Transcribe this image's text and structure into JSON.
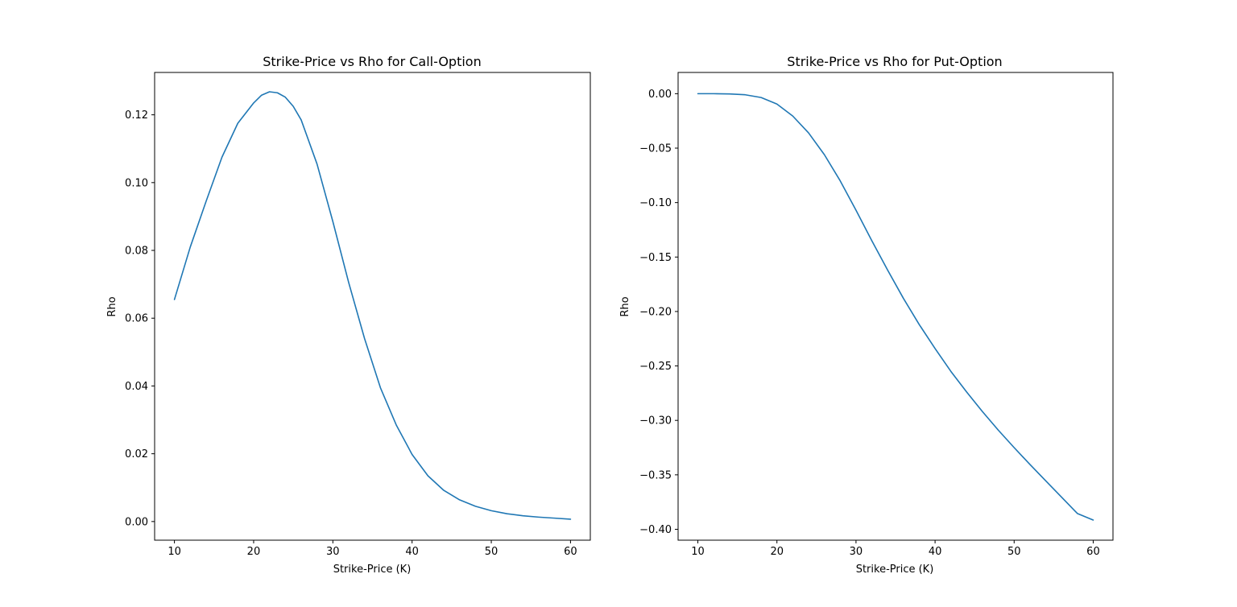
{
  "chart_data": [
    {
      "type": "line",
      "title": "Strike-Price vs Rho for Call-Option",
      "xlabel": "Strike-Price (K)",
      "ylabel": "Rho",
      "xlim": [
        7.5,
        62.5
      ],
      "ylim": [
        -0.0055,
        0.1325
      ],
      "xticks": [
        10,
        20,
        30,
        40,
        50,
        60
      ],
      "xtick_labels": [
        "10",
        "20",
        "30",
        "40",
        "50",
        "60"
      ],
      "yticks": [
        0.0,
        0.02,
        0.04,
        0.06,
        0.08,
        0.1,
        0.12
      ],
      "ytick_labels": [
        "0.00",
        "0.02",
        "0.04",
        "0.06",
        "0.08",
        "0.10",
        "0.12"
      ],
      "grid": false,
      "series": [
        {
          "color": "#1f77b4",
          "x": [
            10,
            12,
            14,
            16,
            18,
            20,
            21,
            22,
            23,
            24,
            25,
            26,
            28,
            30,
            32,
            34,
            36,
            38,
            40,
            42,
            44,
            46,
            48,
            50,
            52,
            54,
            56,
            58,
            60
          ],
          "y": [
            0.0655,
            0.081,
            0.0945,
            0.1075,
            0.1175,
            0.1235,
            0.1258,
            0.1268,
            0.1265,
            0.1252,
            0.1225,
            0.1185,
            0.1055,
            0.0885,
            0.0705,
            0.054,
            0.0395,
            0.0285,
            0.0198,
            0.0135,
            0.0092,
            0.0064,
            0.0045,
            0.0032,
            0.0023,
            0.0017,
            0.0013,
            0.001,
            0.0007
          ]
        }
      ]
    },
    {
      "type": "line",
      "title": "Strike-Price vs Rho for Put-Option",
      "xlabel": "Strike-Price (K)",
      "ylabel": "Rho",
      "xlim": [
        7.5,
        62.5
      ],
      "ylim": [
        -0.41,
        0.0195
      ],
      "xticks": [
        10,
        20,
        30,
        40,
        50,
        60
      ],
      "xtick_labels": [
        "10",
        "20",
        "30",
        "40",
        "50",
        "60"
      ],
      "yticks": [
        0.0,
        -0.05,
        -0.1,
        -0.15,
        -0.2,
        -0.25,
        -0.3,
        -0.35,
        -0.4
      ],
      "ytick_labels": [
        "0.00",
        "−0.05",
        "−0.10",
        "−0.15",
        "−0.20",
        "−0.25",
        "−0.30",
        "−0.35",
        "−0.40"
      ],
      "grid": false,
      "series": [
        {
          "color": "#1f77b4",
          "x": [
            10,
            12,
            14,
            16,
            18,
            20,
            22,
            24,
            26,
            28,
            30,
            32,
            34,
            36,
            38,
            40,
            42,
            44,
            46,
            48,
            50,
            52,
            54,
            56,
            58,
            60
          ],
          "y": [
            0.0,
            0.0,
            -0.0002,
            -0.001,
            -0.0035,
            -0.0095,
            -0.0205,
            -0.036,
            -0.056,
            -0.08,
            -0.107,
            -0.135,
            -0.162,
            -0.188,
            -0.212,
            -0.234,
            -0.255,
            -0.274,
            -0.292,
            -0.309,
            -0.325,
            -0.3405,
            -0.3555,
            -0.3705,
            -0.3855,
            -0.3915
          ]
        }
      ]
    }
  ]
}
